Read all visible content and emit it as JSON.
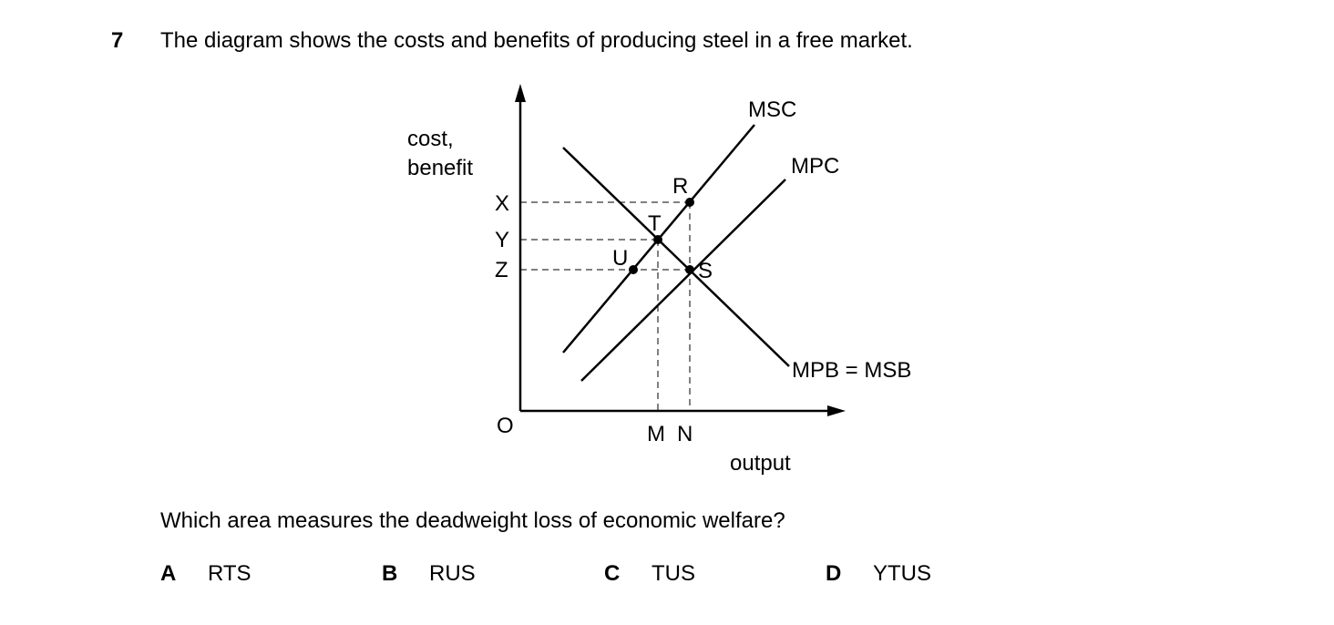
{
  "question": {
    "number": "7",
    "text": "The diagram shows the costs and benefits of producing steel in a free market.",
    "prompt": "Which area measures the deadweight loss of economic welfare?"
  },
  "diagram": {
    "y_axis_label_line1": "cost,",
    "y_axis_label_line2": "benefit",
    "x_axis_label": "output",
    "origin_label": "O",
    "price_labels": {
      "x": "X",
      "y": "Y",
      "z": "Z"
    },
    "quantity_labels": {
      "m": "M",
      "n": "N"
    },
    "point_labels": {
      "r": "R",
      "t": "T",
      "u": "U",
      "s": "S"
    },
    "curve_labels": {
      "msc": "MSC",
      "mpc": "MPC",
      "mpb_msb": "MPB = MSB"
    }
  },
  "options": [
    {
      "letter": "A",
      "answer": "RTS"
    },
    {
      "letter": "B",
      "answer": "RUS"
    },
    {
      "letter": "C",
      "answer": "TUS"
    },
    {
      "letter": "D",
      "answer": "YTUS"
    }
  ]
}
